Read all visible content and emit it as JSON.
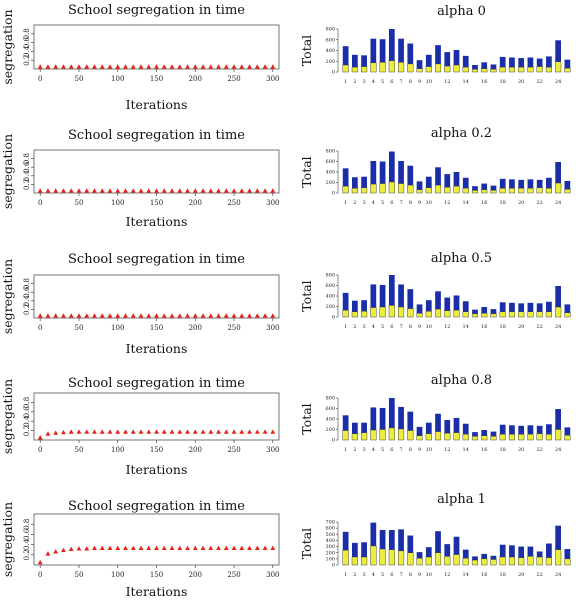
{
  "chart_data": [
    {
      "type": "scatter",
      "title": "School segregation in time",
      "xlabel": "Iterations",
      "ylabel": "segregation",
      "xlim": [
        -8,
        308
      ],
      "ylim": [
        0,
        1.0
      ],
      "xticks": [
        "0",
        "50",
        "100",
        "150",
        "200",
        "250",
        "300"
      ],
      "yticks": [
        "0.2",
        "0.4",
        "0.6",
        "0.8"
      ],
      "marker_color": "#e8201a",
      "series": [
        {
          "x": [
            0,
            10,
            20,
            30,
            40,
            50,
            60,
            70,
            80,
            90,
            100,
            110,
            120,
            130,
            140,
            150,
            160,
            170,
            180,
            190,
            200,
            210,
            220,
            230,
            240,
            250,
            260,
            270,
            280,
            290,
            300
          ],
          "y": [
            0.05,
            0.05,
            0.05,
            0.05,
            0.05,
            0.05,
            0.05,
            0.05,
            0.05,
            0.05,
            0.05,
            0.05,
            0.05,
            0.05,
            0.05,
            0.05,
            0.05,
            0.05,
            0.05,
            0.05,
            0.05,
            0.05,
            0.05,
            0.05,
            0.05,
            0.05,
            0.05,
            0.05,
            0.05,
            0.05,
            0.05
          ]
        }
      ]
    },
    {
      "type": "bar",
      "title": "alpha 0",
      "ylabel": "Total",
      "ylim": [
        0,
        800
      ],
      "yticks": [
        "0",
        "200",
        "400",
        "600",
        "800"
      ],
      "categories": [
        "1",
        "2",
        "3",
        "4",
        "5",
        "6",
        "7",
        "8",
        "9",
        "10",
        "11",
        "12",
        "13",
        "14",
        "15",
        "16",
        "17",
        "18",
        "19",
        "20",
        "21",
        "22",
        "23",
        "24",
        "25"
      ],
      "xtick_labels": [
        "1",
        "2",
        "3",
        "4",
        "5",
        "6",
        "7",
        "8",
        "9",
        "10",
        "",
        "12",
        "",
        "14",
        "",
        "16",
        "",
        "18",
        "",
        "20",
        "",
        "22",
        "",
        "24",
        ""
      ],
      "colors": [
        "#ecec40",
        "#1a2ea8"
      ],
      "series": [
        {
          "values": [
            130,
            90,
            100,
            170,
            180,
            210,
            180,
            150,
            60,
            100,
            150,
            110,
            130,
            90,
            50,
            60,
            50,
            90,
            90,
            90,
            90,
            100,
            90,
            190,
            70
          ]
        },
        {
          "values": [
            480,
            320,
            310,
            620,
            610,
            800,
            620,
            530,
            220,
            320,
            500,
            370,
            410,
            300,
            130,
            180,
            140,
            280,
            270,
            260,
            270,
            250,
            290,
            590,
            230
          ]
        }
      ]
    },
    {
      "type": "scatter",
      "title": "School segregation in time",
      "xlabel": "Iterations",
      "ylabel": "segregation",
      "xlim": [
        -8,
        308
      ],
      "ylim": [
        0,
        1.0
      ],
      "xticks": [
        "0",
        "50",
        "100",
        "150",
        "200",
        "250",
        "300"
      ],
      "yticks": [
        "0.2",
        "0.4",
        "0.6",
        "0.8"
      ],
      "marker_color": "#e8201a",
      "series": [
        {
          "x": [
            0,
            10,
            20,
            30,
            40,
            50,
            60,
            70,
            80,
            90,
            100,
            110,
            120,
            130,
            140,
            150,
            160,
            170,
            180,
            190,
            200,
            210,
            220,
            230,
            240,
            250,
            260,
            270,
            280,
            290,
            300
          ],
          "y": [
            0.05,
            0.05,
            0.05,
            0.05,
            0.05,
            0.05,
            0.05,
            0.05,
            0.05,
            0.05,
            0.05,
            0.05,
            0.05,
            0.05,
            0.05,
            0.05,
            0.05,
            0.05,
            0.05,
            0.05,
            0.05,
            0.05,
            0.05,
            0.05,
            0.05,
            0.05,
            0.05,
            0.05,
            0.05,
            0.05,
            0.05
          ]
        }
      ]
    },
    {
      "type": "bar",
      "title": "alpha 0.2",
      "ylabel": "Total",
      "ylim": [
        0,
        800
      ],
      "yticks": [
        "0",
        "200",
        "400",
        "600",
        "800"
      ],
      "categories": [
        "1",
        "2",
        "3",
        "4",
        "5",
        "6",
        "7",
        "8",
        "9",
        "10",
        "11",
        "12",
        "13",
        "14",
        "15",
        "16",
        "17",
        "18",
        "19",
        "20",
        "21",
        "22",
        "23",
        "24",
        "25"
      ],
      "xtick_labels": [
        "1",
        "2",
        "3",
        "4",
        "5",
        "6",
        "7",
        "8",
        "9",
        "10",
        "",
        "12",
        "",
        "14",
        "",
        "16",
        "",
        "18",
        "",
        "20",
        "",
        "22",
        "",
        "24",
        ""
      ],
      "colors": [
        "#ecec40",
        "#1a2ea8"
      ],
      "series": [
        {
          "values": [
            130,
            90,
            100,
            170,
            180,
            210,
            180,
            150,
            60,
            100,
            150,
            110,
            130,
            90,
            50,
            60,
            50,
            90,
            90,
            90,
            90,
            100,
            90,
            190,
            70
          ]
        },
        {
          "values": [
            470,
            300,
            310,
            610,
            600,
            790,
            610,
            520,
            220,
            310,
            490,
            360,
            400,
            290,
            130,
            180,
            140,
            270,
            260,
            250,
            260,
            250,
            290,
            590,
            230
          ]
        }
      ]
    },
    {
      "type": "scatter",
      "title": "School segregation in time",
      "xlabel": "Iterations",
      "ylabel": "segregation",
      "xlim": [
        -8,
        308
      ],
      "ylim": [
        0,
        1.0
      ],
      "xticks": [
        "0",
        "50",
        "100",
        "150",
        "200",
        "250",
        "300"
      ],
      "yticks": [
        "0.2",
        "0.4",
        "0.6",
        "0.8"
      ],
      "marker_color": "#e8201a",
      "series": [
        {
          "x": [
            0,
            10,
            20,
            30,
            40,
            50,
            60,
            70,
            80,
            90,
            100,
            110,
            120,
            130,
            140,
            150,
            160,
            170,
            180,
            190,
            200,
            210,
            220,
            230,
            240,
            250,
            260,
            270,
            280,
            290,
            300
          ],
          "y": [
            0.05,
            0.05,
            0.05,
            0.05,
            0.05,
            0.05,
            0.05,
            0.05,
            0.05,
            0.05,
            0.05,
            0.05,
            0.05,
            0.05,
            0.05,
            0.05,
            0.05,
            0.05,
            0.05,
            0.05,
            0.05,
            0.05,
            0.05,
            0.05,
            0.05,
            0.05,
            0.05,
            0.05,
            0.05,
            0.05,
            0.05
          ]
        }
      ]
    },
    {
      "type": "bar",
      "title": "alpha 0.5",
      "ylabel": "Total",
      "ylim": [
        0,
        800
      ],
      "yticks": [
        "0",
        "200",
        "400",
        "600",
        "800"
      ],
      "categories": [
        "1",
        "2",
        "3",
        "4",
        "5",
        "6",
        "7",
        "8",
        "9",
        "10",
        "11",
        "12",
        "13",
        "14",
        "15",
        "16",
        "17",
        "18",
        "19",
        "20",
        "21",
        "22",
        "23",
        "24",
        "25"
      ],
      "xtick_labels": [
        "1",
        "2",
        "3",
        "4",
        "5",
        "6",
        "7",
        "8",
        "9",
        "10",
        "",
        "12",
        "",
        "14",
        "",
        "16",
        "",
        "18",
        "",
        "20",
        "",
        "22",
        "",
        "24",
        ""
      ],
      "colors": [
        "#ecec40",
        "#1a2ea8"
      ],
      "series": [
        {
          "values": [
            130,
            100,
            110,
            180,
            190,
            220,
            190,
            160,
            70,
            110,
            150,
            120,
            130,
            100,
            60,
            70,
            60,
            100,
            100,
            100,
            100,
            100,
            100,
            190,
            80
          ]
        },
        {
          "values": [
            460,
            310,
            320,
            620,
            610,
            800,
            620,
            530,
            240,
            320,
            490,
            370,
            410,
            300,
            140,
            190,
            150,
            280,
            270,
            260,
            270,
            260,
            290,
            590,
            240
          ]
        }
      ]
    },
    {
      "type": "scatter",
      "title": "School segregation in time",
      "xlabel": "Iterations",
      "ylabel": "segregation",
      "xlim": [
        -8,
        308
      ],
      "ylim": [
        0,
        1.0
      ],
      "xticks": [
        "0",
        "50",
        "100",
        "150",
        "200",
        "250",
        "300"
      ],
      "yticks": [
        "0.2",
        "0.4",
        "0.6",
        "0.8"
      ],
      "marker_color": "#e8201a",
      "series": [
        {
          "x": [
            0,
            10,
            20,
            30,
            40,
            50,
            60,
            70,
            80,
            90,
            100,
            110,
            120,
            130,
            140,
            150,
            160,
            170,
            180,
            190,
            200,
            210,
            220,
            230,
            240,
            250,
            260,
            270,
            280,
            290,
            300
          ],
          "y": [
            0.05,
            0.13,
            0.15,
            0.16,
            0.17,
            0.17,
            0.17,
            0.17,
            0.17,
            0.17,
            0.17,
            0.17,
            0.17,
            0.17,
            0.17,
            0.17,
            0.17,
            0.17,
            0.17,
            0.17,
            0.17,
            0.17,
            0.17,
            0.17,
            0.17,
            0.17,
            0.17,
            0.17,
            0.17,
            0.17,
            0.17
          ]
        }
      ]
    },
    {
      "type": "bar",
      "title": "alpha 0.8",
      "ylabel": "Total",
      "ylim": [
        0,
        800
      ],
      "yticks": [
        "0",
        "200",
        "400",
        "600",
        "800"
      ],
      "categories": [
        "1",
        "2",
        "3",
        "4",
        "5",
        "6",
        "7",
        "8",
        "9",
        "10",
        "11",
        "12",
        "13",
        "14",
        "15",
        "16",
        "17",
        "18",
        "19",
        "20",
        "21",
        "22",
        "23",
        "24",
        "25"
      ],
      "xtick_labels": [
        "1",
        "2",
        "3",
        "4",
        "5",
        "6",
        "7",
        "8",
        "9",
        "10",
        "",
        "12",
        "",
        "14",
        "",
        "16",
        "",
        "18",
        "",
        "20",
        "",
        "22",
        "",
        "24",
        ""
      ],
      "colors": [
        "#ecec40",
        "#1a2ea8"
      ],
      "series": [
        {
          "values": [
            180,
            120,
            140,
            190,
            200,
            230,
            210,
            180,
            80,
            120,
            160,
            130,
            140,
            110,
            70,
            80,
            70,
            110,
            110,
            110,
            110,
            120,
            110,
            200,
            90
          ]
        },
        {
          "values": [
            470,
            330,
            330,
            620,
            610,
            800,
            630,
            540,
            250,
            330,
            500,
            380,
            420,
            310,
            150,
            190,
            160,
            290,
            280,
            270,
            280,
            270,
            300,
            590,
            240
          ]
        }
      ]
    },
    {
      "type": "scatter",
      "title": "School segregation in time",
      "xlabel": "Iterations",
      "ylabel": "segregation",
      "xlim": [
        -8,
        308
      ],
      "ylim": [
        0,
        1.0
      ],
      "xticks": [
        "0",
        "50",
        "100",
        "150",
        "200",
        "250",
        "300"
      ],
      "yticks": [
        "0.2",
        "0.4",
        "0.6",
        "0.8"
      ],
      "marker_color": "#e8201a",
      "series": [
        {
          "x": [
            0,
            10,
            20,
            30,
            40,
            50,
            60,
            70,
            80,
            90,
            100,
            110,
            120,
            130,
            140,
            150,
            160,
            170,
            180,
            190,
            200,
            210,
            220,
            230,
            240,
            250,
            260,
            270,
            280,
            290,
            300
          ],
          "y": [
            0.05,
            0.22,
            0.26,
            0.29,
            0.31,
            0.32,
            0.32,
            0.33,
            0.33,
            0.33,
            0.33,
            0.33,
            0.33,
            0.33,
            0.33,
            0.33,
            0.33,
            0.33,
            0.33,
            0.33,
            0.33,
            0.33,
            0.33,
            0.33,
            0.33,
            0.33,
            0.33,
            0.33,
            0.33,
            0.33,
            0.33
          ]
        }
      ]
    },
    {
      "type": "bar",
      "title": "alpha 1",
      "ylabel": "Total",
      "ylim": [
        0,
        700
      ],
      "yticks": [
        "0",
        "100",
        "200",
        "300",
        "400",
        "500",
        "600",
        "700"
      ],
      "categories": [
        "1",
        "2",
        "3",
        "4",
        "5",
        "6",
        "7",
        "8",
        "9",
        "10",
        "11",
        "12",
        "13",
        "14",
        "15",
        "16",
        "17",
        "18",
        "19",
        "20",
        "21",
        "22",
        "23",
        "24",
        "25"
      ],
      "xtick_labels": [
        "1",
        "2",
        "3",
        "4",
        "5",
        "6",
        "7",
        "8",
        "9",
        "10",
        "",
        "12",
        "",
        "14",
        "",
        "16",
        "",
        "18",
        "",
        "20",
        "",
        "22",
        "",
        "24",
        ""
      ],
      "colors": [
        "#ecec40",
        "#1a2ea8"
      ],
      "series": [
        {
          "values": [
            240,
            130,
            130,
            310,
            260,
            250,
            230,
            200,
            110,
            130,
            200,
            140,
            170,
            110,
            80,
            100,
            90,
            130,
            130,
            120,
            140,
            130,
            120,
            250,
            100
          ]
        },
        {
          "values": [
            540,
            360,
            370,
            690,
            570,
            570,
            580,
            480,
            210,
            290,
            550,
            340,
            460,
            250,
            140,
            180,
            150,
            330,
            320,
            300,
            300,
            220,
            350,
            640,
            260
          ]
        }
      ]
    }
  ]
}
